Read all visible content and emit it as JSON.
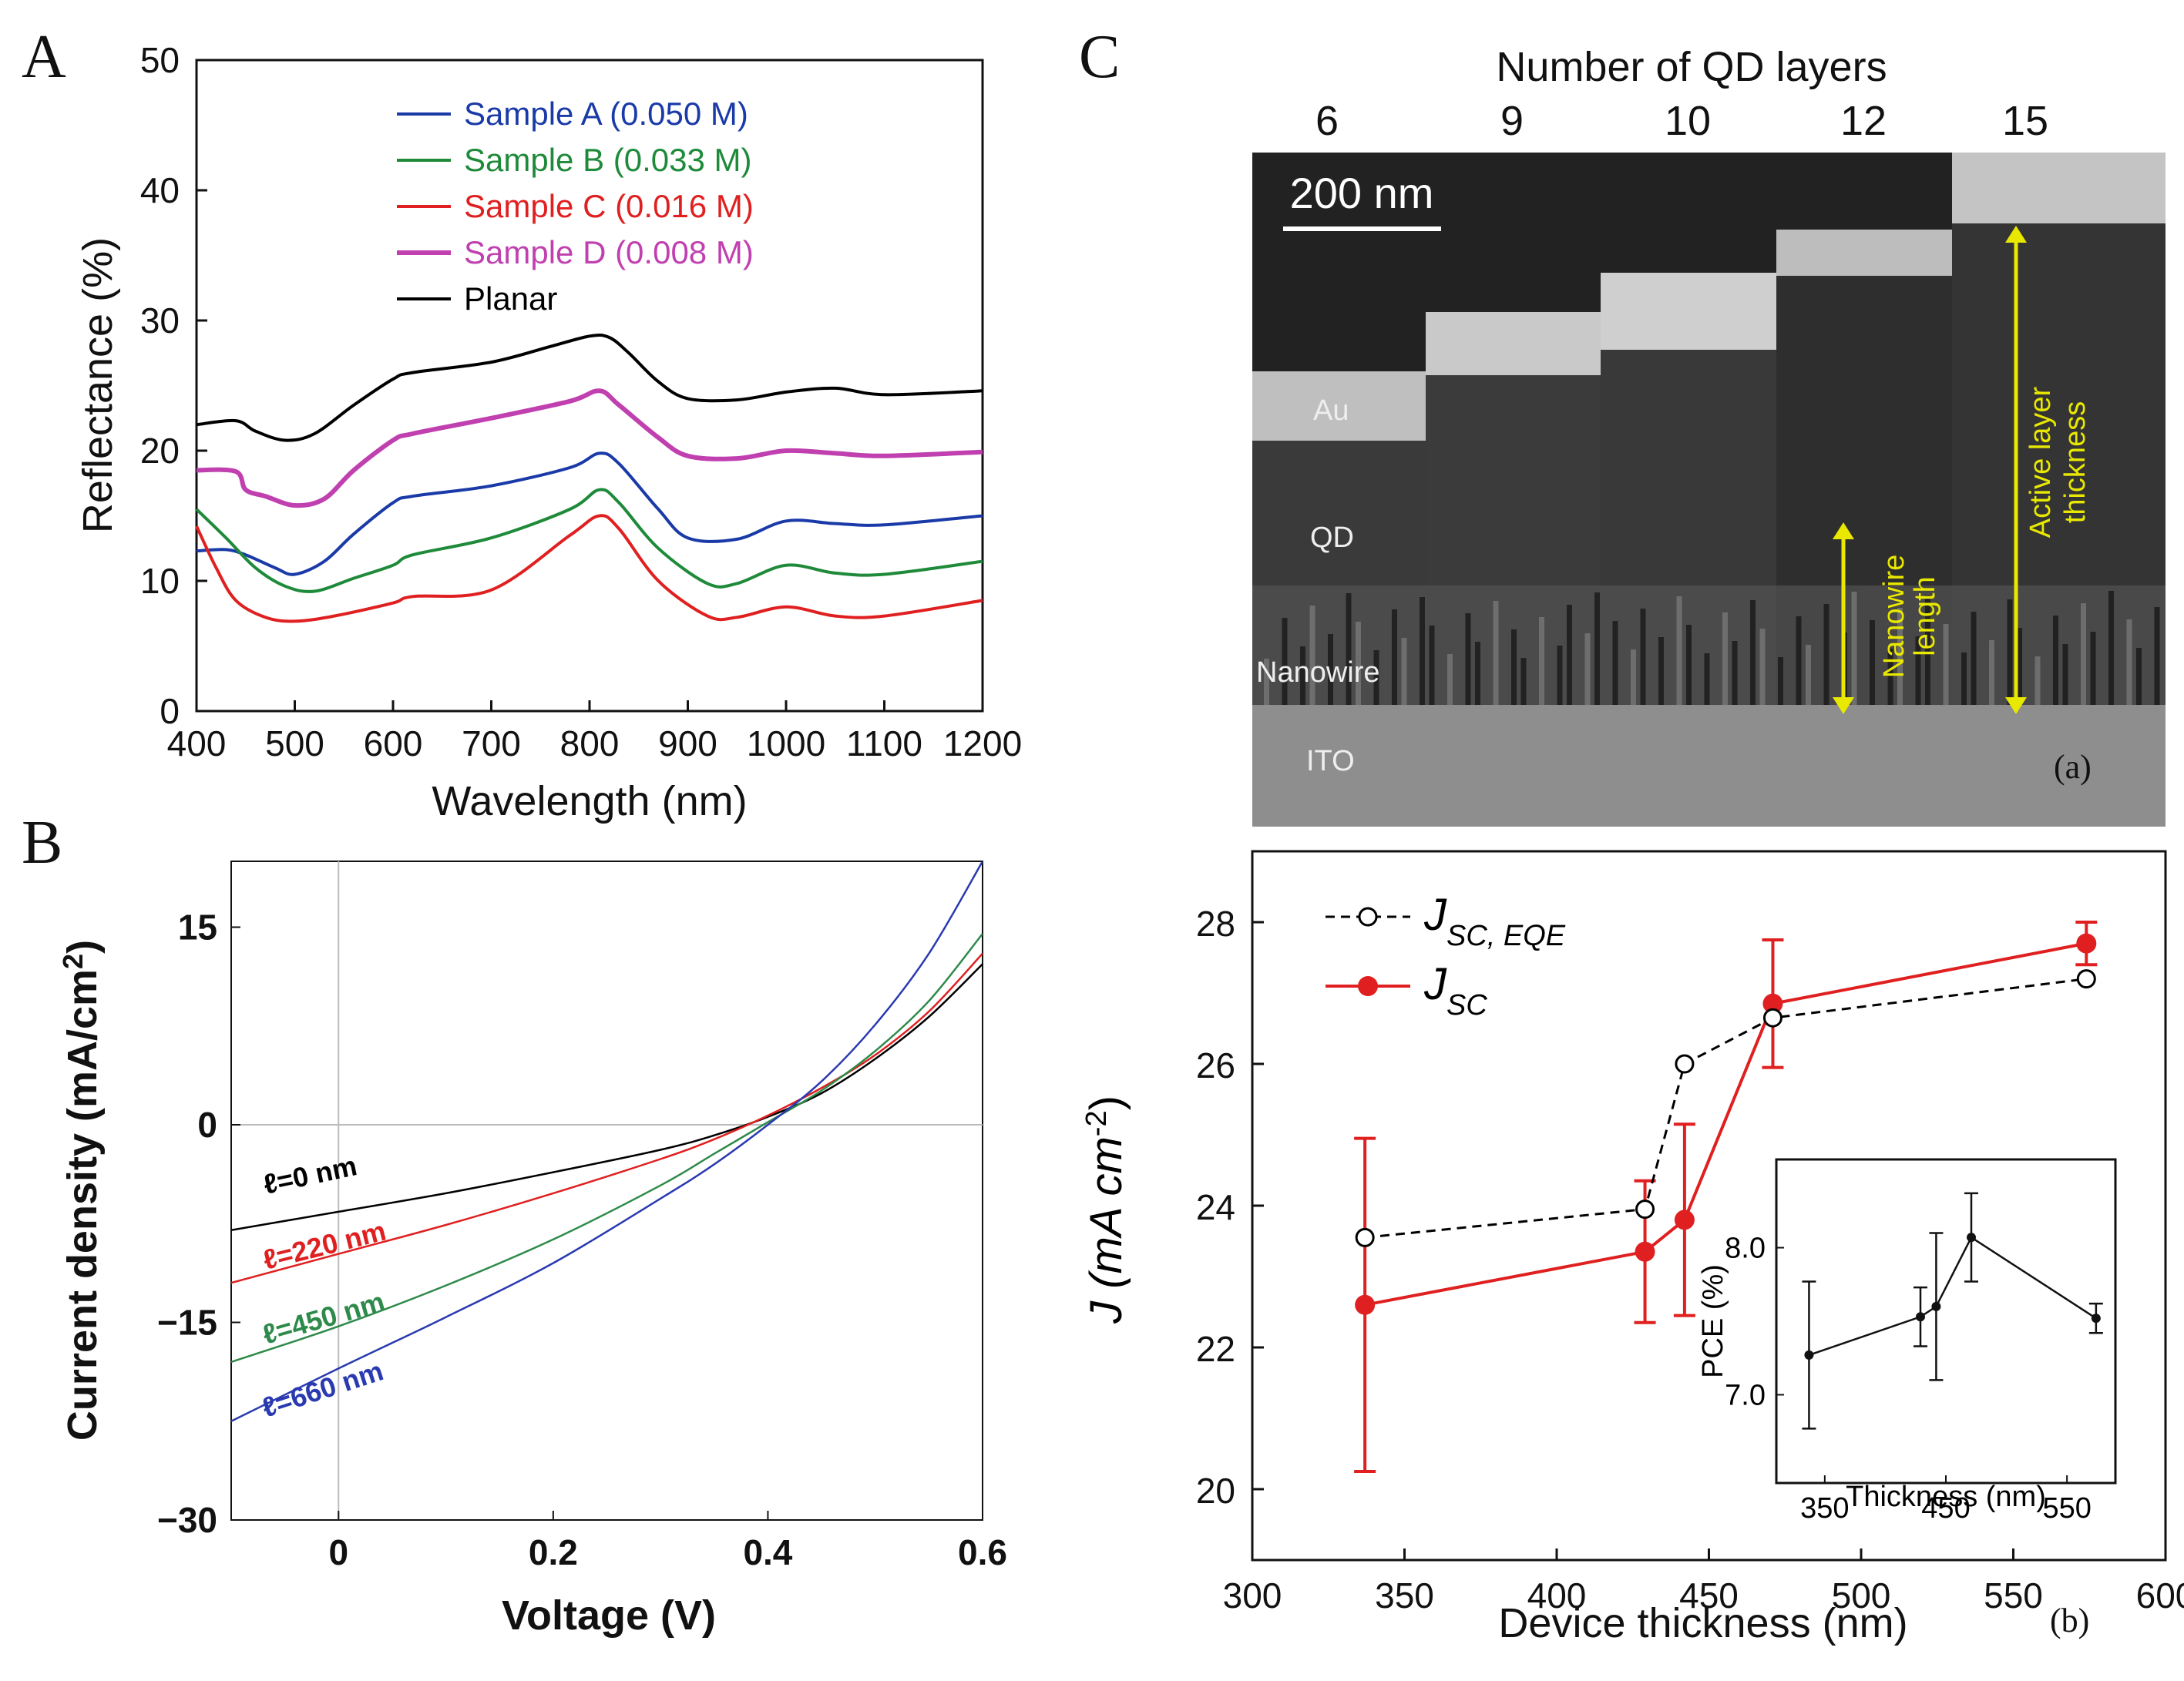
{
  "chart_data": [
    {
      "panel": "A",
      "type": "line",
      "xlabel": "Wavelength (nm)",
      "ylabel": "Reflectance (%)",
      "xlim": [
        400,
        1200
      ],
      "ylim": [
        0,
        50
      ],
      "xticks": [
        400,
        500,
        600,
        700,
        800,
        900,
        1000,
        1100,
        1200
      ],
      "yticks": [
        0,
        10,
        20,
        30,
        40,
        50
      ],
      "series": [
        {
          "name": "Sample A (0.050 M)",
          "color": "#1a3aa8",
          "x": [
            400,
            430,
            450,
            480,
            500,
            530,
            560,
            600,
            620,
            700,
            780,
            810,
            830,
            870,
            900,
            950,
            1000,
            1050,
            1100,
            1200
          ],
          "y": [
            12.3,
            12.4,
            12.0,
            11.0,
            10.5,
            11.5,
            13.6,
            16.0,
            16.5,
            17.3,
            18.7,
            19.8,
            19.0,
            15.5,
            13.3,
            13.2,
            14.6,
            14.4,
            14.3,
            15.0
          ]
        },
        {
          "name": "Sample B (0.033 M)",
          "color": "#1e8a3a",
          "x": [
            400,
            430,
            460,
            490,
            520,
            560,
            600,
            620,
            700,
            780,
            810,
            830,
            870,
            920,
            950,
            1000,
            1050,
            1100,
            1200
          ],
          "y": [
            15.5,
            13.3,
            11.0,
            9.6,
            9.2,
            10.2,
            11.2,
            12.0,
            13.3,
            15.5,
            17.0,
            16.0,
            12.5,
            9.8,
            9.8,
            11.2,
            10.6,
            10.5,
            11.5
          ]
        },
        {
          "name": "Sample C (0.016 M)",
          "color": "#e02020",
          "x": [
            400,
            420,
            440,
            470,
            500,
            540,
            600,
            620,
            700,
            780,
            810,
            830,
            870,
            920,
            950,
            1000,
            1050,
            1100,
            1200
          ],
          "y": [
            14.2,
            11.0,
            8.5,
            7.2,
            6.9,
            7.3,
            8.3,
            8.8,
            9.3,
            13.5,
            15.0,
            14.0,
            10.0,
            7.3,
            7.2,
            8.0,
            7.3,
            7.3,
            8.5
          ]
        },
        {
          "name": "Sample D (0.008 M)",
          "color": "#c040b0",
          "x": [
            400,
            440,
            450,
            470,
            500,
            530,
            560,
            600,
            620,
            700,
            780,
            810,
            830,
            870,
            900,
            950,
            1000,
            1050,
            1100,
            1200
          ],
          "y": [
            18.5,
            18.4,
            17.0,
            16.5,
            15.8,
            16.3,
            18.5,
            20.8,
            21.3,
            22.5,
            23.8,
            24.6,
            23.5,
            21.0,
            19.6,
            19.4,
            20.0,
            19.8,
            19.6,
            19.9
          ]
        },
        {
          "name": "Planar",
          "color": "#000000",
          "x": [
            400,
            440,
            460,
            490,
            520,
            560,
            600,
            620,
            700,
            760,
            800,
            820,
            840,
            870,
            900,
            950,
            1000,
            1050,
            1100,
            1200
          ],
          "y": [
            22.0,
            22.3,
            21.5,
            20.8,
            21.3,
            23.5,
            25.5,
            26.0,
            26.8,
            28.0,
            28.8,
            28.7,
            27.5,
            25.3,
            24.0,
            23.9,
            24.5,
            24.8,
            24.3,
            24.6
          ]
        }
      ]
    },
    {
      "panel": "B",
      "type": "line",
      "xlabel": "Voltage (V)",
      "ylabel": "Current density (mA/cm",
      "ylabel_sup": "2",
      "ylabel_end": ")",
      "xlim": [
        -0.1,
        0.6
      ],
      "ylim": [
        -30,
        20
      ],
      "xticks": [
        0,
        0.2,
        0.4,
        0.6
      ],
      "xtick_labels": [
        "0",
        "0.2",
        "0.4",
        "0.6"
      ],
      "yticks": [
        -30,
        -15,
        0,
        15
      ],
      "ytick_labels": [
        "−30",
        "−15",
        "0",
        "15"
      ],
      "series": [
        {
          "name": "ℓ=0 nm",
          "color": "#000000",
          "x": [
            -0.1,
            0,
            0.1,
            0.2,
            0.3,
            0.35,
            0.4,
            0.45,
            0.5,
            0.55,
            0.6
          ],
          "y": [
            -8,
            -6.6,
            -5.2,
            -3.6,
            -1.9,
            -0.8,
            0.6,
            2.4,
            5.0,
            8.2,
            12.2
          ]
        },
        {
          "name": "ℓ=220 nm",
          "color": "#e02020",
          "x": [
            -0.1,
            0,
            0.1,
            0.2,
            0.3,
            0.35,
            0.4,
            0.45,
            0.5,
            0.55,
            0.6
          ],
          "y": [
            -12,
            -9.8,
            -7.6,
            -5.2,
            -2.6,
            -1.1,
            0.7,
            2.8,
            5.3,
            8.6,
            13.0
          ]
        },
        {
          "name": "ℓ=450 nm",
          "color": "#2e8a4a",
          "x": [
            -0.1,
            0,
            0.1,
            0.2,
            0.3,
            0.35,
            0.4,
            0.45,
            0.5,
            0.55,
            0.6
          ],
          "y": [
            -18,
            -15.3,
            -12.2,
            -8.7,
            -4.6,
            -2.2,
            0.2,
            2.6,
            5.6,
            9.4,
            14.5
          ]
        },
        {
          "name": "ℓ=660 nm",
          "color": "#2a3ab0",
          "x": [
            -0.1,
            0,
            0.1,
            0.2,
            0.3,
            0.35,
            0.4,
            0.45,
            0.5,
            0.55,
            0.6
          ],
          "y": [
            -22.5,
            -18.5,
            -14.6,
            -10.5,
            -5.6,
            -3.0,
            0,
            3.3,
            7.6,
            13.0,
            20.0
          ]
        }
      ]
    },
    {
      "panel": "C",
      "type": "line",
      "xlabel": "Device thickness (nm)",
      "ylabel": "J (mA cm",
      "ylabel_sup": "-2",
      "ylabel_end": ")",
      "xlim": [
        300,
        600
      ],
      "ylim": [
        19,
        29
      ],
      "xticks": [
        300,
        350,
        400,
        450,
        500,
        550,
        600
      ],
      "yticks": [
        20,
        22,
        24,
        26,
        28
      ],
      "series": [
        {
          "name": "J_SC, EQE",
          "color": "#000000",
          "style": "dashed-open-circles",
          "x": [
            337,
            429,
            442,
            471,
            574
          ],
          "y": [
            23.55,
            23.95,
            26.0,
            26.65,
            27.2
          ]
        },
        {
          "name": "J_SC",
          "color": "#e02020",
          "style": "solid-filled-circles",
          "x": [
            337,
            429,
            442,
            471,
            574
          ],
          "y": [
            22.6,
            23.35,
            23.8,
            26.85,
            27.7
          ],
          "err": [
            2.35,
            1.0,
            1.35,
            0.9,
            0.3
          ]
        }
      ],
      "inset": {
        "type": "line",
        "xlabel": "Thickness (nm)",
        "ylabel": "PCE (%)",
        "xlim": [
          310,
          590
        ],
        "ylim": [
          6.4,
          8.6
        ],
        "xticks": [
          350,
          450,
          550
        ],
        "yticks": [
          7.0,
          8.0
        ],
        "ytick_labels": [
          "7.0",
          "8.0"
        ],
        "x": [
          337,
          429,
          442,
          471,
          574
        ],
        "y": [
          7.27,
          7.53,
          7.6,
          8.07,
          7.52
        ],
        "err": [
          0.5,
          0.2,
          0.5,
          0.3,
          0.1
        ]
      },
      "sublabel": "(b)"
    }
  ],
  "labels": {
    "panel_a": "A",
    "panel_b": "B",
    "panel_c": "C",
    "sem_title": "Number of QD layers",
    "sem_layers": [
      "6",
      "9",
      "10",
      "12",
      "15"
    ],
    "scale_bar": "200 nm",
    "au": "Au",
    "qd": "QD",
    "nanowire": "Nanowire",
    "ito": "ITO",
    "nanowire_length_1": "Nanowire",
    "nanowire_length_2": "length",
    "active_1": "Active layer",
    "active_2": "thickness",
    "sem_sublabel": "(a)",
    "legend_c_j_eqe": "J",
    "legend_c_j_eqe_sub": "SC, EQE",
    "legend_c_j": "J",
    "legend_c_j_sub": "SC"
  }
}
